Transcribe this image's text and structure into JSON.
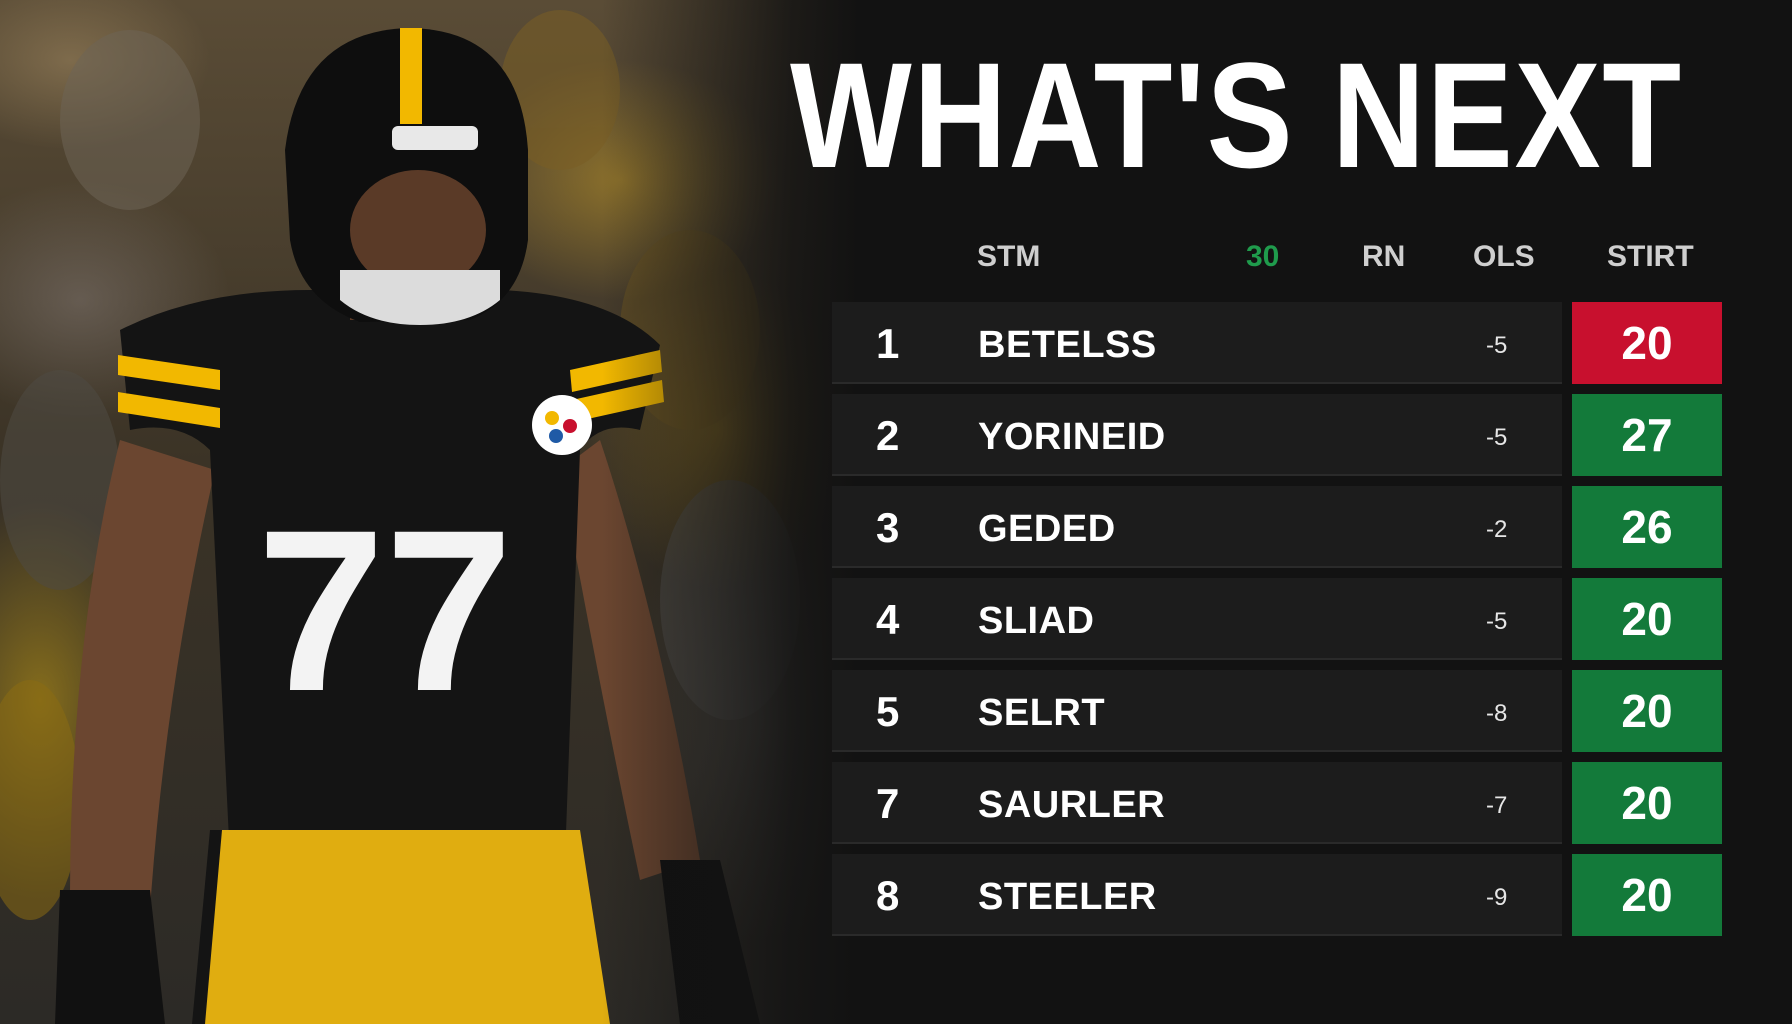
{
  "title": "WHAT'S NEXT",
  "jersey_number": "77",
  "table": {
    "headers": {
      "team": "STM",
      "col2": "30",
      "col3": "RN",
      "col4": "OLS",
      "start": "STIRT"
    },
    "rows": [
      {
        "rank": "1",
        "name": "BETELSS",
        "diff": "-5",
        "score": "20",
        "status": "red"
      },
      {
        "rank": "2",
        "name": "YORINEID",
        "diff": "-5",
        "score": "27",
        "status": "green"
      },
      {
        "rank": "3",
        "name": "GEDED",
        "diff": "-2",
        "score": "26",
        "status": "green"
      },
      {
        "rank": "4",
        "name": "SLIAD",
        "diff": "-5",
        "score": "20",
        "status": "green"
      },
      {
        "rank": "5",
        "name": "SELRT",
        "diff": "-8",
        "score": "20",
        "status": "green"
      },
      {
        "rank": "7",
        "name": "SAURLER",
        "diff": "-7",
        "score": "20",
        "status": "green"
      },
      {
        "rank": "8",
        "name": "STEELER",
        "diff": "-9",
        "score": "20",
        "status": "green"
      }
    ]
  },
  "colors": {
    "red": "#c8102e",
    "green": "#137a3a",
    "gold": "#f2b800",
    "background": "#121212"
  }
}
